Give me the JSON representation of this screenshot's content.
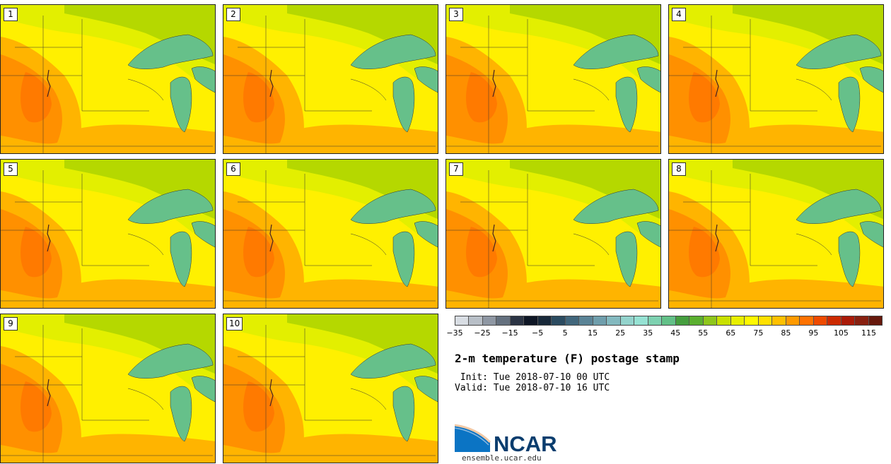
{
  "title": "2-m temperature (F) postage stamp",
  "init_text": " Init: Tue 2018-07-10 00 UTC",
  "valid_text": "Valid: Tue 2018-07-10 16 UTC",
  "logo": {
    "name": "NCAR",
    "url": "ensemble.ucar.edu"
  },
  "members": [
    "1",
    "2",
    "3",
    "4",
    "5",
    "6",
    "7",
    "8",
    "9",
    "10"
  ],
  "colorbar": {
    "colors": [
      "#d8dde3",
      "#b8bfc7",
      "#8e97a3",
      "#64707e",
      "#2b3444",
      "#0e1625",
      "#18293a",
      "#2b4b60",
      "#41667b",
      "#5a8396",
      "#6f9eac",
      "#83b9bf",
      "#93d3cc",
      "#96e2d3",
      "#7dd1b0",
      "#62c087",
      "#459e3e",
      "#5aaf2f",
      "#8ec61c",
      "#c8e000",
      "#e8ef00",
      "#fff800",
      "#ffe000",
      "#ffc000",
      "#ff9a00",
      "#ff7200",
      "#ee4a00",
      "#cc2a00",
      "#aa1a08",
      "#882010",
      "#66180c"
    ],
    "tick_labels": [
      "−35",
      "−25",
      "−15",
      "−5",
      "5",
      "15",
      "25",
      "35",
      "45",
      "55",
      "65",
      "75",
      "85",
      "95",
      "105",
      "115"
    ]
  },
  "colors": {
    "water": "#66c08a",
    "north": "#b5d800",
    "mid": "#e3ef00",
    "warm": "#fff000",
    "hot": "#ffb400",
    "hotter": "#ff9000",
    "hottest": "#ff7a00"
  }
}
